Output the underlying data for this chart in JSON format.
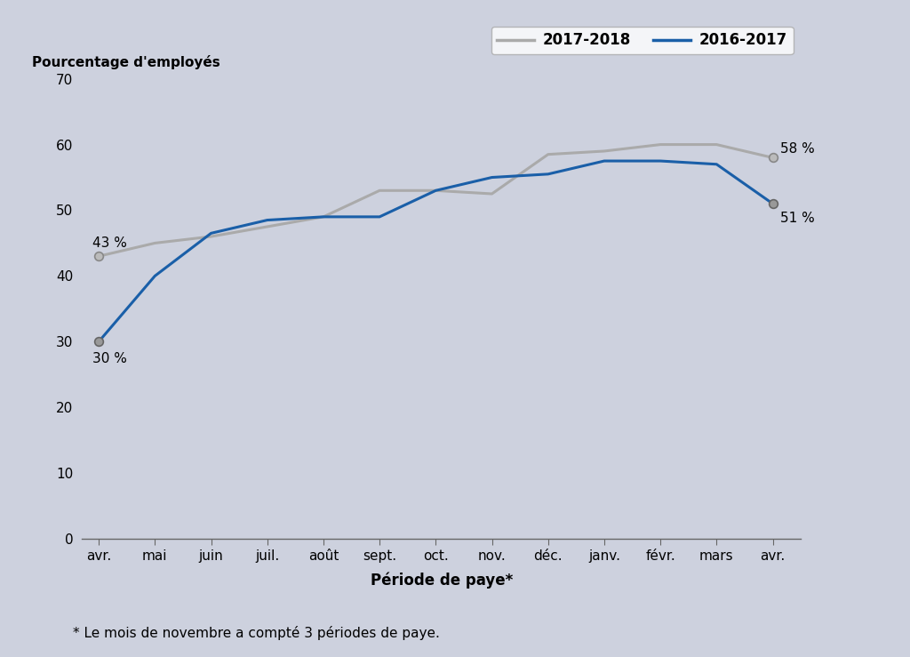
{
  "categories": [
    "avr.",
    "mai",
    "juin",
    "juil.",
    "août",
    "sept.",
    "oct.",
    "nov.",
    "déc.",
    "janv.",
    "févr.",
    "mars",
    "avr."
  ],
  "series_2017_2018": [
    43,
    45,
    46,
    47.5,
    49,
    53,
    53,
    52.5,
    58.5,
    59,
    60,
    60,
    58
  ],
  "series_2016_2017": [
    30,
    40,
    46.5,
    48.5,
    49,
    49,
    53,
    55,
    55.5,
    57.5,
    57.5,
    57,
    51
  ],
  "color_2017_2018": "#aaaaaa",
  "color_2016_2017": "#1a5fa8",
  "background_color": "#cdd1de",
  "plot_bg_color": "#cdd1de",
  "ylabel": "Pourcentage d'employés",
  "xlabel": "Période de paye*",
  "ylim": [
    0,
    70
  ],
  "yticks": [
    0,
    10,
    20,
    30,
    40,
    50,
    60,
    70
  ],
  "legend_labels": [
    "2017-2018",
    "2016-2017"
  ],
  "footnote": "* Le mois de novembre a compté 3 périodes de paye.",
  "label_start_2017_2018_val": "43 %",
  "label_start_2016_2017_val": "30 %",
  "label_end_2017_2018_val": "58 %",
  "label_end_2016_2017_val": "51 %",
  "linewidth": 2.2
}
